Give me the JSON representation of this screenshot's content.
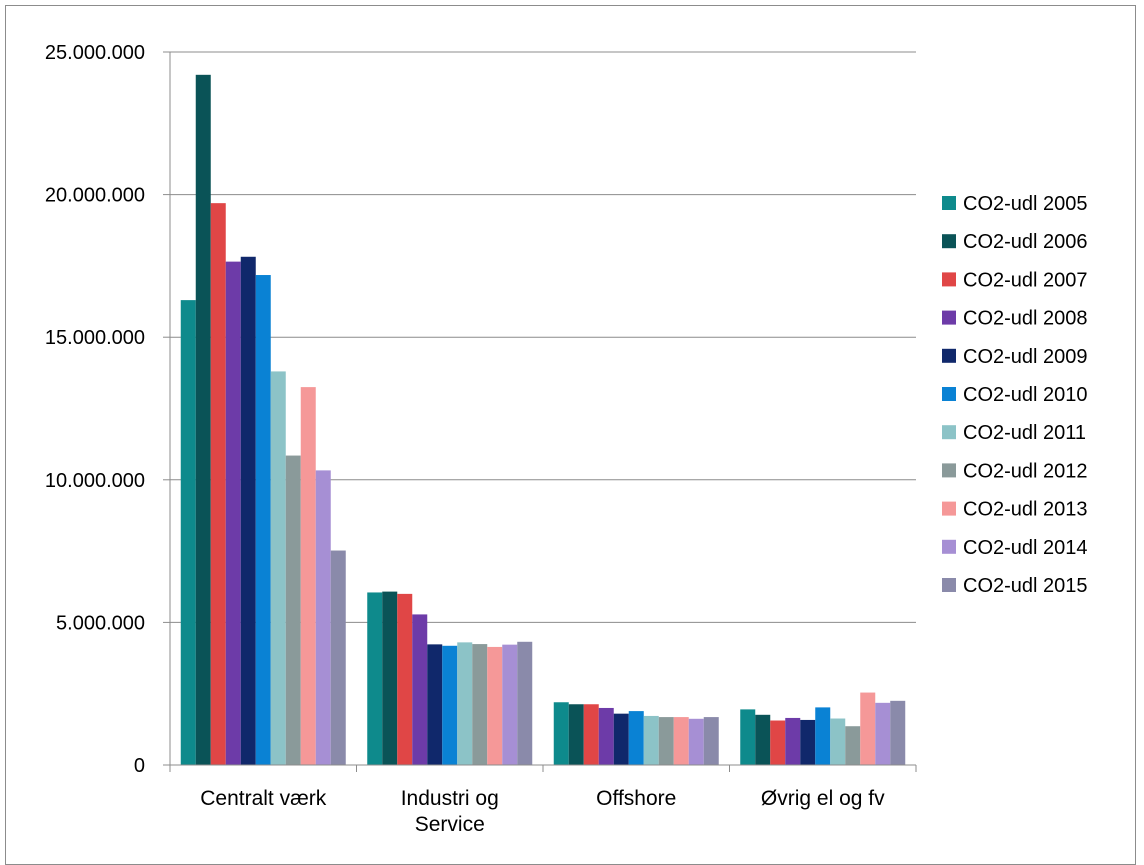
{
  "chart_data": {
    "type": "bar",
    "categories": [
      "Centralt værk",
      "Industri og Service",
      "Offshore",
      "Øvrig el og fv"
    ],
    "category_lines": [
      [
        "Centralt værk"
      ],
      [
        "Industri og",
        "Service"
      ],
      [
        "Offshore"
      ],
      [
        "Øvrig el og fv"
      ]
    ],
    "ylim": [
      0,
      25000000
    ],
    "yticks": [
      0,
      5000000,
      10000000,
      15000000,
      20000000,
      25000000
    ],
    "ytick_labels": [
      "0",
      "5.000.000",
      "10.000.000",
      "15.000.000",
      "20.000.000",
      "25.000.000"
    ],
    "grid": true,
    "legend_position": "right",
    "series": [
      {
        "name": "CO2-udl 2005",
        "color": "#0e8a8c",
        "values": [
          16300000,
          6050000,
          2200000,
          1950000
        ]
      },
      {
        "name": "CO2-udl 2006",
        "color": "#0a5357",
        "values": [
          24200000,
          6080000,
          2130000,
          1760000
        ]
      },
      {
        "name": "CO2-udl 2007",
        "color": "#e04646",
        "values": [
          19700000,
          6000000,
          2130000,
          1560000
        ]
      },
      {
        "name": "CO2-udl 2008",
        "color": "#6d3ba8",
        "values": [
          17650000,
          5280000,
          2000000,
          1650000
        ]
      },
      {
        "name": "CO2-udl 2009",
        "color": "#10286b",
        "values": [
          17820000,
          4230000,
          1800000,
          1580000
        ]
      },
      {
        "name": "CO2-udl 2010",
        "color": "#0a82d4",
        "values": [
          17180000,
          4180000,
          1890000,
          2020000
        ]
      },
      {
        "name": "CO2-udl 2011",
        "color": "#8cc3c7",
        "values": [
          13800000,
          4300000,
          1720000,
          1630000
        ]
      },
      {
        "name": "CO2-udl 2012",
        "color": "#8a9a9a",
        "values": [
          10850000,
          4240000,
          1680000,
          1360000
        ]
      },
      {
        "name": "CO2-udl 2013",
        "color": "#f59898",
        "values": [
          13250000,
          4140000,
          1680000,
          2540000
        ]
      },
      {
        "name": "CO2-udl 2014",
        "color": "#a68fd4",
        "values": [
          10330000,
          4220000,
          1620000,
          2180000
        ]
      },
      {
        "name": "CO2-udl 2015",
        "color": "#8a8aaa",
        "values": [
          7520000,
          4320000,
          1680000,
          2250000
        ]
      }
    ]
  }
}
